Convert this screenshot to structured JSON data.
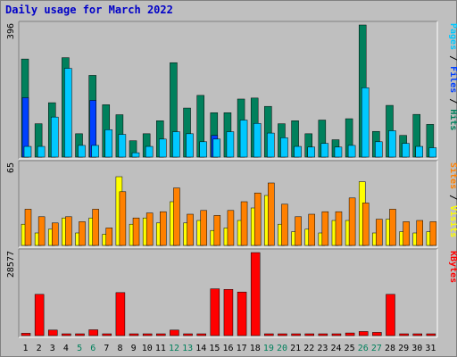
{
  "title": "Daily usage for March 2022",
  "colors": {
    "background": "#bfbfbf",
    "panel_border": "#808080",
    "title": "#0000c8",
    "hits": "#00805c",
    "files": "#0040ff",
    "pages": "#00c8ff",
    "visits": "#ffff00",
    "sites": "#ff8000",
    "kbytes": "#ff0000",
    "weekend_label": "#00805c",
    "weekday_label": "#000000"
  },
  "panels": {
    "top": {
      "max_label": "396",
      "legend": [
        {
          "text": "Pages",
          "color": "#00c8ff"
        },
        {
          "text": " / ",
          "color": "#000000"
        },
        {
          "text": "Files",
          "color": "#0040ff"
        },
        {
          "text": " / ",
          "color": "#000000"
        },
        {
          "text": "Hits",
          "color": "#00805c"
        }
      ]
    },
    "mid": {
      "max_label": "65",
      "legend": [
        {
          "text": "Sites",
          "color": "#ff8000"
        },
        {
          "text": " / ",
          "color": "#000000"
        },
        {
          "text": "Visits",
          "color": "#ffff00"
        }
      ]
    },
    "bot": {
      "max_label": "28577",
      "legend": [
        {
          "text": "KBytes",
          "color": "#ff0000"
        }
      ]
    }
  },
  "chart_data": {
    "type": "bar",
    "title": "Daily usage for March 2022",
    "categories": [
      "1",
      "2",
      "3",
      "4",
      "5",
      "6",
      "7",
      "8",
      "9",
      "10",
      "11",
      "12",
      "13",
      "14",
      "15",
      "16",
      "17",
      "18",
      "19",
      "20",
      "21",
      "22",
      "23",
      "24",
      "25",
      "26",
      "27",
      "28",
      "29",
      "30",
      "31"
    ],
    "weekend_days": [
      "5",
      "6",
      "12",
      "13",
      "19",
      "20",
      "26",
      "27"
    ],
    "series": [
      {
        "name": "Hits",
        "panel": "top",
        "color": "#00805c",
        "values": [
          294,
          100,
          163,
          298,
          70,
          245,
          157,
          127,
          49,
          70,
          109,
          283,
          147,
          185,
          133,
          133,
          174,
          177,
          152,
          100,
          109,
          70,
          111,
          52,
          115,
          396,
          77,
          155,
          65,
          128,
          98
        ]
      },
      {
        "name": "Files",
        "panel": "top",
        "color": "#0040ff",
        "values": [
          178,
          0,
          0,
          0,
          0,
          170,
          0,
          0,
          0,
          0,
          0,
          0,
          0,
          0,
          65,
          0,
          0,
          0,
          0,
          0,
          0,
          0,
          0,
          0,
          0,
          0,
          0,
          0,
          0,
          0,
          0
        ]
      },
      {
        "name": "Pages",
        "panel": "top",
        "color": "#00c8ff",
        "values": [
          32,
          32,
          120,
          266,
          35,
          35,
          82,
          68,
          13,
          32,
          54,
          76,
          70,
          46,
          54,
          76,
          111,
          101,
          72,
          58,
          32,
          30,
          41,
          30,
          35,
          208,
          46,
          79,
          41,
          32,
          28
        ]
      },
      {
        "name": "Visits",
        "panel": "mid",
        "color": "#ffff00",
        "values": [
          17,
          10,
          13,
          22,
          10,
          22,
          9,
          55,
          17,
          22,
          18,
          35,
          18,
          20,
          12,
          14,
          20,
          30,
          40,
          17,
          11,
          13,
          10,
          20,
          20,
          51,
          10,
          21,
          11,
          10,
          11
        ]
      },
      {
        "name": "Sites",
        "panel": "mid",
        "color": "#ff8000",
        "values": [
          29,
          23,
          18,
          23,
          19,
          29,
          14,
          43,
          22,
          26,
          27,
          46,
          25,
          28,
          24,
          28,
          35,
          42,
          50,
          33,
          23,
          25,
          27,
          27,
          38,
          34,
          21,
          29,
          19,
          20,
          19
        ]
      },
      {
        "name": "KBytes",
        "panel": "bot",
        "color": "#ff0000",
        "values": [
          800,
          14200,
          1900,
          300,
          300,
          2000,
          600,
          14800,
          300,
          300,
          300,
          1900,
          300,
          300,
          16100,
          15900,
          15000,
          28577,
          300,
          600,
          300,
          300,
          300,
          300,
          900,
          1400,
          1100,
          14200,
          600,
          300,
          300
        ]
      }
    ]
  }
}
